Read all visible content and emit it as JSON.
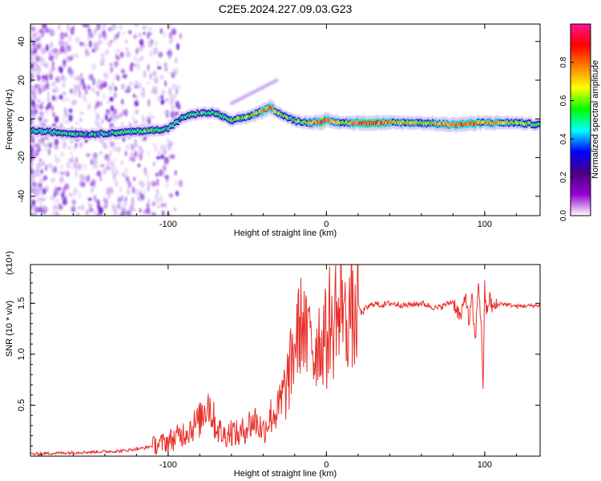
{
  "title": "C2E5.2024.227.09.03.G23",
  "chart_data": [
    {
      "type": "heatmap",
      "title": "C2E5.2024.227.09.03.G23",
      "xlabel": "Height of straight line (km)",
      "ylabel": "Frequency (Hz)",
      "xlim": [
        -187,
        135
      ],
      "ylim": [
        -50,
        49
      ],
      "x_ticks": [
        -100,
        0,
        100
      ],
      "x_tick_labels": [
        "-100",
        "0",
        "100"
      ],
      "y_ticks": [
        -40,
        -20,
        0,
        20,
        40
      ],
      "y_tick_labels": [
        "-40",
        "-20",
        "0",
        "20",
        "40"
      ],
      "colorbar": {
        "label": "Normalized spectral amplitude",
        "range": [
          0.0,
          1.0
        ],
        "ticks": [
          0.0,
          0.2,
          0.4,
          0.6,
          0.8
        ],
        "tick_labels": [
          "0.0",
          "0.2",
          "0.4",
          "0.6",
          "0.8"
        ],
        "colormap": [
          "#ffffff",
          "#9400d3",
          "#4b0082",
          "#0000ff",
          "#00ffff",
          "#00ff00",
          "#ffff00",
          "#ff7f00",
          "#ff0000",
          "#ff1493"
        ]
      },
      "ridge": {
        "x": [
          -187,
          -170,
          -150,
          -130,
          -110,
          -100,
          -90,
          -80,
          -70,
          -60,
          -50,
          -40,
          -35,
          -30,
          -20,
          -10,
          0,
          10,
          20,
          40,
          60,
          80,
          100,
          120,
          135
        ],
        "frequency": [
          -6,
          -7,
          -8,
          -7,
          -6,
          -5,
          1,
          3,
          3,
          -1,
          1,
          4,
          6,
          3,
          -1,
          -2,
          -1,
          -2,
          -2,
          -2,
          -2,
          -3,
          -2,
          -2,
          -3
        ],
        "amplitude": [
          0.45,
          0.5,
          0.45,
          0.5,
          0.55,
          0.5,
          0.45,
          0.5,
          0.5,
          0.55,
          0.6,
          0.75,
          0.85,
          0.6,
          0.5,
          0.7,
          0.9,
          0.6,
          0.85,
          0.75,
          0.6,
          0.85,
          0.75,
          0.6,
          0.55
        ]
      }
    },
    {
      "type": "line",
      "xlabel": "Height of straight line (km)",
      "ylabel": "SNR (10 * v/v)",
      "scale_label": "(x10⁴)",
      "xlim": [
        -187,
        135
      ],
      "ylim": [
        0.0,
        1.88
      ],
      "x_ticks": [
        -100,
        0,
        100
      ],
      "x_tick_labels": [
        "-100",
        "0",
        "100"
      ],
      "y_ticks": [
        0.5,
        1.0,
        1.5
      ],
      "y_tick_labels": [
        "0.5",
        "1.0",
        "1.5"
      ],
      "series": [
        {
          "name": "SNR",
          "color": "#e8302a",
          "x": [
            -187,
            -170,
            -150,
            -130,
            -115,
            -105,
            -95,
            -88,
            -80,
            -75,
            -70,
            -65,
            -60,
            -55,
            -50,
            -45,
            -40,
            -35,
            -30,
            -25,
            -22,
            -20,
            -18,
            -15,
            -12,
            -10,
            -8,
            -5,
            -3,
            -1,
            0,
            2,
            4,
            6,
            8,
            10,
            12,
            15,
            18,
            20,
            22,
            25,
            30,
            35,
            40,
            50,
            60,
            70,
            80,
            85,
            88,
            90,
            92,
            94,
            96,
            98,
            99,
            100,
            101,
            103,
            105,
            110,
            120,
            135
          ],
          "y": [
            0.02,
            0.03,
            0.04,
            0.05,
            0.08,
            0.12,
            0.18,
            0.25,
            0.35,
            0.55,
            0.3,
            0.2,
            0.25,
            0.2,
            0.3,
            0.35,
            0.25,
            0.4,
            0.45,
            0.7,
            0.9,
            1.1,
            1.2,
            1.35,
            1.05,
            1.4,
            0.95,
            1.2,
            1.05,
            1.3,
            1.0,
            1.4,
            1.1,
            1.55,
            1.2,
            1.7,
            1.25,
            1.45,
            1.25,
            1.5,
            1.4,
            1.45,
            1.5,
            1.48,
            1.5,
            1.48,
            1.5,
            1.45,
            1.52,
            1.35,
            1.6,
            1.3,
            1.55,
            1.1,
            1.75,
            1.2,
            0.68,
            1.65,
            1.4,
            1.55,
            1.45,
            1.5,
            1.47,
            1.48
          ]
        }
      ]
    }
  ]
}
